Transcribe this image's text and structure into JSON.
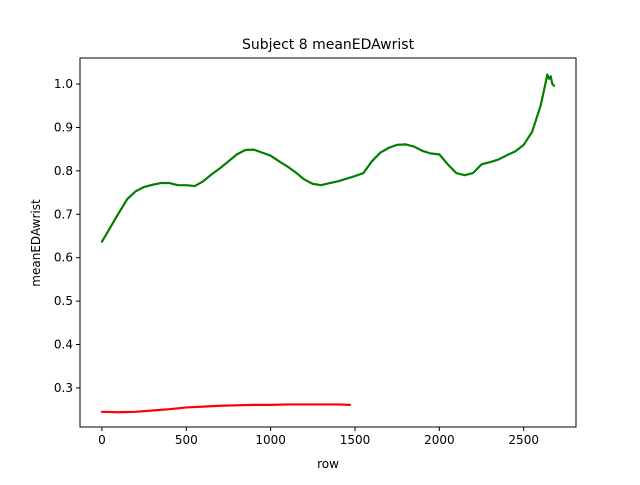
{
  "chart_data": {
    "type": "line",
    "title": "Subject 8 meanEDAwrist",
    "xlabel": "row",
    "ylabel": "meanEDAwrist",
    "xlim": [
      -130,
      2810
    ],
    "ylim": [
      0.21,
      1.06
    ],
    "xticks": [
      0,
      500,
      1000,
      1500,
      2000,
      2500
    ],
    "xtick_labels": [
      "0",
      "500",
      "1000",
      "1500",
      "2000",
      "2500"
    ],
    "yticks": [
      0.3,
      0.4,
      0.5,
      0.6,
      0.7,
      0.8,
      0.9,
      1.0
    ],
    "ytick_labels": [
      "0.3",
      "0.4",
      "0.5",
      "0.6",
      "0.7",
      "0.8",
      "0.9",
      "1.0"
    ],
    "grid": false,
    "legend": "none",
    "series": [
      {
        "color": "#ff0000",
        "x": [
          0,
          100,
          200,
          300,
          400,
          500,
          600,
          700,
          800,
          900,
          1000,
          1100,
          1200,
          1300,
          1400,
          1470
        ],
        "y": [
          0.245,
          0.244,
          0.245,
          0.248,
          0.251,
          0.255,
          0.257,
          0.259,
          0.26,
          0.261,
          0.261,
          0.262,
          0.262,
          0.262,
          0.262,
          0.261
        ]
      },
      {
        "color": "#008000",
        "x": [
          0,
          50,
          100,
          150,
          200,
          250,
          300,
          350,
          400,
          450,
          500,
          550,
          600,
          650,
          700,
          750,
          800,
          850,
          900,
          950,
          1000,
          1050,
          1100,
          1150,
          1200,
          1250,
          1300,
          1350,
          1400,
          1450,
          1500,
          1550,
          1600,
          1650,
          1700,
          1750,
          1800,
          1850,
          1900,
          1950,
          2000,
          2050,
          2100,
          2150,
          2200,
          2250,
          2300,
          2350,
          2400,
          2450,
          2500,
          2550,
          2600,
          2620,
          2640,
          2650,
          2660,
          2670,
          2680
        ],
        "y": [
          0.637,
          0.67,
          0.703,
          0.735,
          0.753,
          0.763,
          0.768,
          0.772,
          0.772,
          0.767,
          0.767,
          0.765,
          0.776,
          0.792,
          0.806,
          0.822,
          0.838,
          0.848,
          0.849,
          0.842,
          0.835,
          0.822,
          0.81,
          0.796,
          0.78,
          0.77,
          0.767,
          0.772,
          0.776,
          0.782,
          0.788,
          0.795,
          0.822,
          0.842,
          0.853,
          0.86,
          0.861,
          0.856,
          0.846,
          0.84,
          0.838,
          0.815,
          0.795,
          0.79,
          0.795,
          0.815,
          0.82,
          0.826,
          0.836,
          0.845,
          0.86,
          0.89,
          0.95,
          0.985,
          1.022,
          1.012,
          1.018,
          1.0,
          0.996
        ]
      }
    ]
  }
}
